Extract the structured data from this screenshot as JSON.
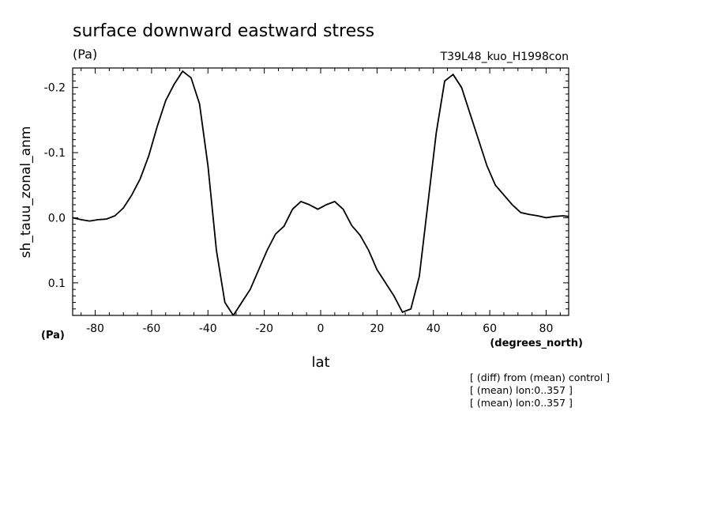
{
  "chart_data": {
    "type": "line",
    "title": "surface downward eastward stress",
    "units": "(Pa)",
    "run_label": "T39L48_kuo_H1998con",
    "ylabel": "sh_tauu_zonal_anm",
    "xlabel": "lat",
    "x_units": "(degrees_north)",
    "y_units": "(Pa)",
    "xlim": [
      -88,
      88
    ],
    "ylim": [
      0.15,
      -0.23
    ],
    "y_inverted": true,
    "x_ticks": [
      -80,
      -60,
      -40,
      -20,
      0,
      20,
      40,
      60,
      80
    ],
    "y_ticks": [
      -0.2,
      -0.1,
      0.0,
      0.1
    ],
    "y_tick_labels": [
      "-0.2",
      "-0.1",
      "0.0",
      "0.1"
    ],
    "grid": false,
    "series": [
      {
        "x": [
          -88,
          -85,
          -82,
          -79,
          -76,
          -73,
          -70,
          -67,
          -64,
          -61,
          -58,
          -55,
          -52,
          -49,
          -46,
          -43,
          -40,
          -37,
          -34,
          -31,
          -28,
          -25,
          -22,
          -19,
          -16,
          -13,
          -10,
          -7,
          -4,
          -1,
          2,
          5,
          8,
          11,
          14,
          17,
          20,
          23,
          26,
          29,
          32,
          35,
          38,
          41,
          44,
          47,
          50,
          53,
          56,
          59,
          62,
          65,
          68,
          71,
          74,
          77,
          80,
          83,
          86,
          88
        ],
        "y": [
          0.0,
          0.003,
          0.005,
          0.003,
          0.002,
          -0.003,
          -0.015,
          -0.035,
          -0.06,
          -0.095,
          -0.14,
          -0.18,
          -0.205,
          -0.225,
          -0.215,
          -0.175,
          -0.08,
          0.05,
          0.13,
          0.15,
          0.13,
          0.11,
          0.08,
          0.05,
          0.025,
          0.013,
          -0.013,
          -0.025,
          -0.02,
          -0.013,
          -0.02,
          -0.025,
          -0.013,
          0.012,
          0.027,
          0.05,
          0.08,
          0.1,
          0.12,
          0.145,
          0.14,
          0.09,
          -0.02,
          -0.13,
          -0.21,
          -0.22,
          -0.2,
          -0.16,
          -0.12,
          -0.08,
          -0.05,
          -0.035,
          -0.02,
          -0.008,
          -0.005,
          -0.003,
          0.0,
          -0.002,
          -0.003,
          -0.002
        ]
      }
    ],
    "notes": [
      "[ (diff) from (mean) control ]",
      "[ (mean) lon:0..357 ]",
      "[ (mean) lon:0..357 ]"
    ]
  }
}
